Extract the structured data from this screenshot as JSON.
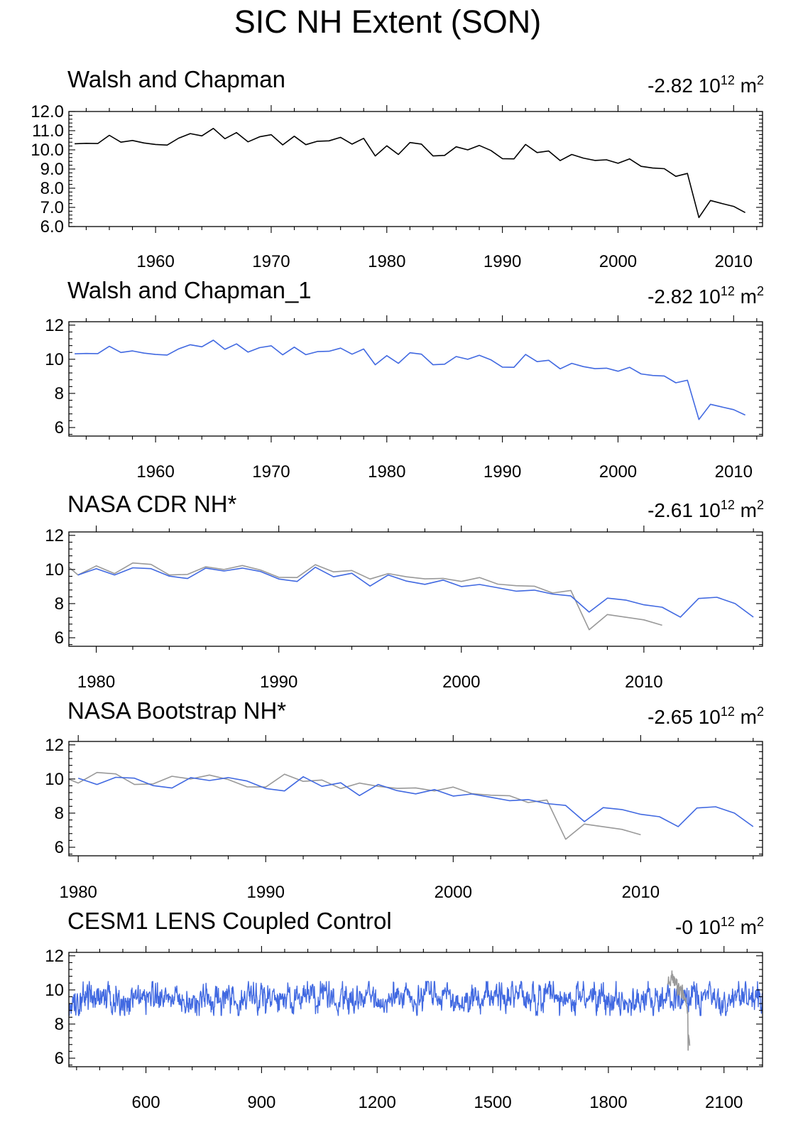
{
  "title": "SIC NH Extent (SON)",
  "colors": {
    "observed": "#000000",
    "model": "#4169e1",
    "reference": "#999999"
  },
  "chart_data": [
    {
      "type": "line",
      "title": "Walsh and Chapman",
      "trend_value": "-2.82",
      "trend_unit": "10",
      "trend_exp": "12",
      "trend_m": "m",
      "trend_m_exp": "2",
      "xlim": [
        1952.5,
        2012.5
      ],
      "ylim": [
        6,
        12
      ],
      "xticks": [
        1960,
        1970,
        1980,
        1990,
        2000,
        2010
      ],
      "yticks": [
        6,
        7,
        8,
        9,
        10,
        11,
        12
      ],
      "ytick_labels": [
        "6.0",
        "7.0",
        "8.0",
        "9.0",
        "10.0",
        "11.0",
        "12.0"
      ],
      "series": [
        {
          "name": "Walsh and Chapman",
          "color": "#000000",
          "x_start": 1953,
          "values": [
            10.32,
            10.34,
            10.33,
            10.76,
            10.4,
            10.49,
            10.36,
            10.28,
            10.25,
            10.61,
            10.85,
            10.73,
            11.12,
            10.58,
            10.9,
            10.42,
            10.68,
            10.79,
            10.26,
            10.71,
            10.27,
            10.45,
            10.47,
            10.65,
            10.3,
            10.6,
            9.68,
            10.21,
            9.76,
            10.38,
            10.3,
            9.68,
            9.71,
            10.16,
            10.0,
            10.23,
            9.97,
            9.54,
            9.53,
            10.28,
            9.86,
            9.94,
            9.44,
            9.76,
            9.57,
            9.45,
            9.48,
            9.3,
            9.53,
            9.14,
            9.05,
            9.02,
            8.62,
            8.77,
            6.47,
            7.36,
            7.2,
            7.05,
            6.73
          ]
        }
      ]
    },
    {
      "type": "line",
      "title": "Walsh and Chapman_1",
      "trend_value": "-2.82",
      "trend_unit": "10",
      "trend_exp": "12",
      "trend_m": "m",
      "trend_m_exp": "2",
      "xlim": [
        1952.5,
        2012.5
      ],
      "ylim": [
        5.5,
        12.2
      ],
      "xticks": [
        1960,
        1970,
        1980,
        1990,
        2000,
        2010
      ],
      "yticks": [
        6,
        8,
        10,
        12
      ],
      "ytick_labels": [
        "6",
        "8",
        "10",
        "12"
      ],
      "series": [
        {
          "name": "Walsh and Chapman_1",
          "color": "#4169e1",
          "x_start": 1953,
          "values": [
            10.32,
            10.34,
            10.33,
            10.76,
            10.4,
            10.49,
            10.36,
            10.28,
            10.25,
            10.61,
            10.85,
            10.73,
            11.12,
            10.58,
            10.9,
            10.42,
            10.68,
            10.79,
            10.26,
            10.71,
            10.27,
            10.45,
            10.47,
            10.65,
            10.3,
            10.6,
            9.68,
            10.21,
            9.76,
            10.38,
            10.3,
            9.68,
            9.71,
            10.16,
            10.0,
            10.23,
            9.97,
            9.54,
            9.53,
            10.28,
            9.86,
            9.94,
            9.44,
            9.76,
            9.57,
            9.45,
            9.48,
            9.3,
            9.53,
            9.14,
            9.05,
            9.02,
            8.62,
            8.77,
            6.47,
            7.36,
            7.2,
            7.05,
            6.73
          ]
        }
      ]
    },
    {
      "type": "line",
      "title": "NASA CDR NH*",
      "trend_value": "-2.61",
      "trend_unit": "10",
      "trend_exp": "12",
      "trend_m": "m",
      "trend_m_exp": "2",
      "xlim": [
        1978.5,
        2016.5
      ],
      "ylim": [
        5.5,
        12.2
      ],
      "xticks": [
        1980,
        1990,
        2000,
        2010
      ],
      "yticks": [
        6,
        8,
        10,
        12
      ],
      "ytick_labels": [
        "6",
        "8",
        "10",
        "12"
      ],
      "series": [
        {
          "name": "Walsh and Chapman",
          "color": "#999999",
          "x_start": 1978,
          "values": [
            10.6,
            9.68,
            10.21,
            9.76,
            10.38,
            10.3,
            9.68,
            9.71,
            10.16,
            10.0,
            10.23,
            9.97,
            9.54,
            9.53,
            10.28,
            9.86,
            9.94,
            9.44,
            9.76,
            9.57,
            9.45,
            9.48,
            9.3,
            9.53,
            9.14,
            9.05,
            9.02,
            8.62,
            8.77,
            6.47,
            7.36,
            7.2,
            7.05,
            6.73
          ]
        },
        {
          "name": "NASA CDR NH",
          "color": "#4169e1",
          "x_start": 1979,
          "values": [
            9.68,
            10.05,
            9.68,
            10.1,
            10.05,
            9.61,
            9.47,
            10.08,
            9.91,
            10.08,
            9.88,
            9.44,
            9.3,
            10.13,
            9.57,
            9.78,
            9.03,
            9.68,
            9.32,
            9.13,
            9.38,
            9.0,
            9.12,
            8.93,
            8.73,
            8.79,
            8.56,
            8.45,
            7.5,
            8.32,
            8.21,
            7.93,
            7.79,
            7.21,
            8.3,
            8.37,
            8.0,
            7.21
          ]
        }
      ]
    },
    {
      "type": "line",
      "title": "NASA Bootstrap NH*",
      "trend_value": "-2.65",
      "trend_unit": "10",
      "trend_exp": "12",
      "trend_m": "m",
      "trend_m_exp": "2",
      "xlim": [
        1979.5,
        2016.5
      ],
      "ylim": [
        5.5,
        12.2
      ],
      "xticks": [
        1980,
        1990,
        2000,
        2010
      ],
      "yticks": [
        6,
        8,
        10,
        12
      ],
      "ytick_labels": [
        "6",
        "8",
        "10",
        "12"
      ],
      "series": [
        {
          "name": "Walsh and Chapman",
          "color": "#999999",
          "x_start": 1979,
          "values": [
            10.21,
            9.76,
            10.38,
            10.3,
            9.68,
            9.71,
            10.16,
            10.0,
            10.23,
            9.97,
            9.54,
            9.53,
            10.28,
            9.86,
            9.94,
            9.44,
            9.76,
            9.57,
            9.45,
            9.48,
            9.3,
            9.53,
            9.14,
            9.05,
            9.02,
            8.62,
            8.77,
            6.47,
            7.36,
            7.2,
            7.05,
            6.73
          ]
        },
        {
          "name": "NASA Bootstrap NH",
          "color": "#4169e1",
          "x_start": 1980,
          "values": [
            10.05,
            9.68,
            10.1,
            10.05,
            9.61,
            9.47,
            10.08,
            9.91,
            10.08,
            9.88,
            9.44,
            9.3,
            10.13,
            9.57,
            9.78,
            9.03,
            9.68,
            9.32,
            9.13,
            9.38,
            9.0,
            9.12,
            8.93,
            8.73,
            8.79,
            8.56,
            8.45,
            7.5,
            8.32,
            8.21,
            7.93,
            7.79,
            7.21,
            8.3,
            8.37,
            8.0,
            7.21
          ]
        }
      ]
    },
    {
      "type": "line",
      "title": "CESM1 LENS Coupled Control",
      "trend_value": "-0",
      "trend_unit": "10",
      "trend_exp": "12",
      "trend_m": "m",
      "trend_m_exp": "2",
      "xlim": [
        400,
        2200
      ],
      "ylim": [
        5.5,
        12.2
      ],
      "xticks": [
        600,
        900,
        1200,
        1500,
        1800,
        2100
      ],
      "yticks": [
        6,
        8,
        10,
        12
      ],
      "ytick_labels": [
        "6",
        "8",
        "10",
        "12"
      ],
      "series": [
        {
          "name": "CESM1 LENS control",
          "color": "#4169e1",
          "x_start": 400,
          "x_end": 2200,
          "mean": 9.5,
          "amplitude": 1.0,
          "seed": 20240517
        },
        {
          "name": "Walsh and Chapman",
          "color": "#999999",
          "x_start": 1953,
          "values": [
            10.32,
            10.34,
            10.33,
            10.76,
            10.4,
            10.49,
            10.36,
            10.28,
            10.25,
            10.61,
            10.85,
            10.73,
            11.12,
            10.58,
            10.9,
            10.42,
            10.68,
            10.79,
            10.26,
            10.71,
            10.27,
            10.45,
            10.47,
            10.65,
            10.3,
            10.6,
            9.68,
            10.21,
            9.76,
            10.38,
            10.3,
            9.68,
            9.71,
            10.16,
            10.0,
            10.23,
            9.97,
            9.54,
            9.53,
            10.28,
            9.86,
            9.94,
            9.44,
            9.76,
            9.57,
            9.45,
            9.48,
            9.3,
            9.53,
            9.14,
            9.05,
            9.02,
            8.62,
            8.77,
            6.47,
            7.36,
            7.2,
            7.05,
            6.73
          ]
        }
      ]
    }
  ]
}
